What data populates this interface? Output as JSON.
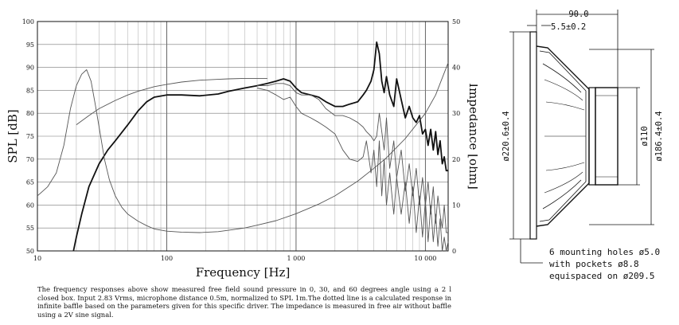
{
  "chart_data": {
    "type": "line",
    "xlabel": "Frequency [Hz]",
    "ylabel": "SPL [dB]",
    "y2label": "Impedance [ohm]",
    "x_scale": "log",
    "xlim": [
      10,
      15000
    ],
    "ylim": [
      50,
      100
    ],
    "y2lim": [
      0,
      50
    ],
    "grid": true,
    "x_ticks": [
      10,
      100,
      1000,
      10000
    ],
    "x_tick_labels": [
      "10",
      "100",
      "1 000",
      "10 000"
    ],
    "y_ticks": [
      50,
      55,
      60,
      65,
      70,
      75,
      80,
      85,
      90,
      95,
      100
    ],
    "y2_ticks": [
      0,
      10,
      20,
      30,
      40,
      50
    ],
    "series": [
      {
        "axis": "left",
        "style": "bold",
        "x": [
          19,
          20,
          22,
          25,
          30,
          35,
          40,
          50,
          60,
          70,
          80,
          100,
          130,
          180,
          250,
          300,
          400,
          500,
          600,
          700,
          800,
          900,
          1000,
          1100,
          1300,
          1500,
          1700,
          2000,
          2300,
          2600,
          3000,
          3300,
          3500,
          3800,
          4000,
          4200,
          4400,
          4600,
          4800,
          5000,
          5300,
          5700,
          6000,
          6500,
          7000,
          7500,
          8000,
          8500,
          9000,
          9500,
          10000,
          10500,
          11000,
          11500,
          12000,
          12500,
          13000,
          13500,
          14000,
          14500,
          15000
        ],
        "values": [
          50,
          53,
          58,
          64,
          69,
          72,
          74,
          77.5,
          80.5,
          82.5,
          83.5,
          84,
          84,
          83.8,
          84.2,
          84.8,
          85.5,
          86,
          86.5,
          87,
          87.5,
          87,
          85.5,
          84.5,
          84,
          83.5,
          82.5,
          81.5,
          81.5,
          82,
          82.5,
          84,
          85,
          87,
          89.5,
          95.5,
          93,
          87,
          84.5,
          88,
          84,
          81.5,
          87.5,
          83,
          79,
          81.5,
          79,
          78,
          79.5,
          75.5,
          76.5,
          73,
          76.5,
          72,
          76,
          71,
          74,
          69,
          70.5,
          67.5,
          67.5
        ]
      },
      {
        "axis": "left",
        "style": "thin",
        "x": [
          500,
          600,
          700,
          800,
          900,
          1000,
          1100,
          1300,
          1500,
          1700,
          2000,
          2300,
          2600,
          3000,
          3300,
          3500,
          3800,
          4000,
          4200,
          4400,
          4600,
          4800,
          5000,
          5300,
          5700,
          6000,
          6500,
          7000,
          7500,
          8000,
          8500,
          9000,
          9500,
          10000,
          10500,
          11000,
          11500,
          12000,
          12500,
          13000,
          13500,
          14000,
          14500,
          15000
        ],
        "values": [
          86,
          86,
          86.5,
          86.5,
          86,
          84.5,
          84,
          84,
          83,
          81,
          79.5,
          79.5,
          79,
          78,
          77,
          76,
          75,
          74,
          75,
          80,
          76,
          72,
          79,
          68,
          74,
          66,
          72,
          63,
          69,
          62,
          68,
          60,
          66,
          60,
          65,
          58,
          64,
          56,
          62,
          58,
          55,
          60,
          54,
          54
        ]
      },
      {
        "axis": "left",
        "style": "thin",
        "x": [
          500,
          600,
          700,
          800,
          900,
          1000,
          1100,
          1300,
          1500,
          1700,
          2000,
          2300,
          2600,
          3000,
          3300,
          3500,
          3800,
          4000,
          4200,
          4400,
          4600,
          4800,
          5000,
          5300,
          5700,
          6000,
          6500,
          7000,
          7500,
          8000,
          8500,
          9000,
          9500,
          10000,
          10500,
          11000,
          11500,
          12000,
          12500,
          13000,
          13500,
          14000,
          14500,
          15000
        ],
        "values": [
          85.5,
          85,
          84,
          83,
          83.5,
          81.5,
          80,
          79,
          78,
          77,
          75.5,
          72,
          70,
          69.5,
          70.5,
          74,
          67,
          72,
          64,
          74,
          62,
          70,
          60,
          67,
          58,
          66,
          58,
          65,
          56,
          64,
          54,
          62,
          53,
          61,
          52,
          60,
          52,
          58,
          51,
          57,
          50,
          53,
          50,
          52
        ]
      },
      {
        "axis": "right",
        "style": "thin",
        "x": [
          10,
          12,
          14,
          16,
          18,
          20,
          22,
          24,
          26,
          28,
          30,
          33,
          36,
          40,
          45,
          50,
          60,
          70,
          80,
          100,
          130,
          180,
          250,
          300,
          400,
          500,
          700,
          1000,
          1500,
          2000,
          3000,
          4000,
          5000,
          7000,
          10000,
          12000,
          15000
        ],
        "values": [
          12,
          14,
          17,
          23,
          31,
          36,
          38.5,
          39.5,
          37,
          32,
          27,
          20,
          15.5,
          12,
          9.5,
          8,
          6.5,
          5.5,
          4.8,
          4.3,
          4.1,
          4.0,
          4.2,
          4.5,
          5.0,
          5.6,
          6.6,
          8.1,
          10.2,
          12.0,
          15.2,
          18.0,
          20.3,
          24.5,
          30.0,
          34.0,
          41.0
        ]
      },
      {
        "axis": "left",
        "style": "dotted",
        "x": [
          20,
          25,
          30,
          40,
          50,
          60,
          80,
          100,
          130,
          180,
          250,
          300,
          400,
          500,
          600
        ],
        "values": [
          77.5,
          79.5,
          81,
          82.8,
          84,
          84.8,
          85.8,
          86.3,
          86.8,
          87.2,
          87.4,
          87.5,
          87.6,
          87.6,
          87.6
        ]
      }
    ]
  },
  "caption": "The frequency responses above show measured free field sound pressure in 0, 30, and 60 degrees angle using a 2 l closed box. Input 2.83 Vrms, microphone distance 0.5m, normalized to SPL 1m.The dotted line is a calculated response in infinite baffle based on the parameters given for this specific driver. The impedance is measured in free air without baffle using a 2V sine signal.",
  "drawing": {
    "dim_total_depth": "90.0",
    "dim_flange": "5.5±0.2",
    "dim_outer_diameter": "ø220.6±0.4",
    "dim_magnet": "ø110",
    "dim_cutout": "ø186.4±0.4",
    "note_line1": "6 mounting holes ø5.0",
    "note_line2": "with pockets ø8.8",
    "note_line3": "equispaced on ø209.5"
  },
  "colors": {
    "grid": "#aaaaaa",
    "line": "#111111",
    "thin": "#555555"
  }
}
